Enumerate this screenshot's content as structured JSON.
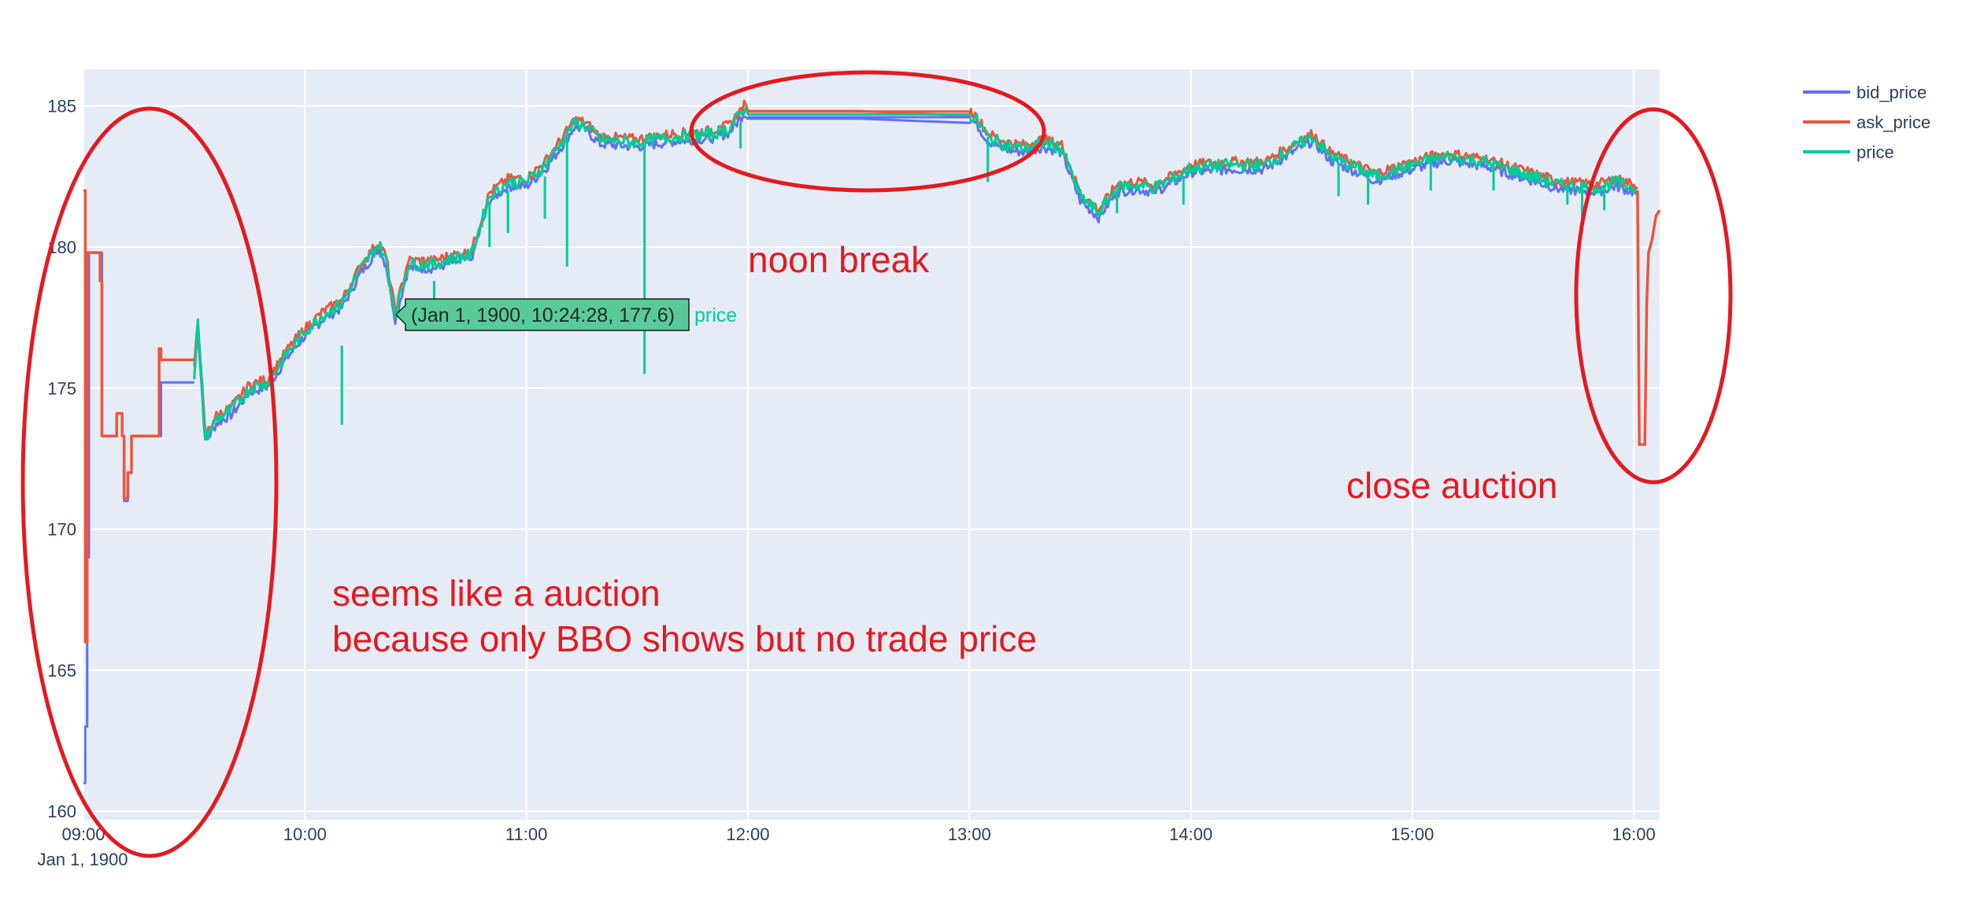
{
  "chart_data": {
    "type": "line",
    "title": "",
    "xlabel": "",
    "ylabel": "",
    "x_axis": {
      "type": "time",
      "range": [
        "09:00",
        "16:07"
      ],
      "ticks": [
        "09:00",
        "10:00",
        "11:00",
        "12:00",
        "13:00",
        "14:00",
        "15:00",
        "16:00"
      ],
      "date_label": "Jan 1, 1900"
    },
    "y_axis": {
      "range": [
        159.7,
        186.3
      ],
      "ticks": [
        160,
        165,
        170,
        175,
        180,
        185
      ]
    },
    "grid": true,
    "plot_bgcolor": "#e5ecf6",
    "legend": {
      "position": "top-right"
    },
    "series": [
      {
        "name": "bid_price",
        "color": "#636efa",
        "points": [
          [
            "09:00",
            161.0
          ],
          [
            "09:00:30",
            163.0
          ],
          [
            "09:01",
            169.0
          ],
          [
            "09:01:30",
            179.8
          ],
          [
            "09:04",
            179.8
          ],
          [
            "09:05",
            173.3
          ],
          [
            "09:08",
            173.3
          ],
          [
            "09:09",
            174.1
          ],
          [
            "09:10",
            174.1
          ],
          [
            "09:10:30",
            173.3
          ],
          [
            "09:11",
            171.0
          ],
          [
            "09:12",
            172.0
          ],
          [
            "09:13",
            173.3
          ],
          [
            "09:20",
            173.3
          ],
          [
            "09:21",
            175.2
          ],
          [
            "09:30",
            175.2
          ]
        ]
      },
      {
        "name": "ask_price",
        "color": "#ef553b",
        "points": [
          [
            "09:00",
            182.0
          ],
          [
            "09:00:30",
            166.0
          ],
          [
            "09:01",
            179.8
          ],
          [
            "09:04",
            179.8
          ],
          [
            "09:04:30",
            178.8
          ],
          [
            "09:05",
            173.3
          ],
          [
            "09:08",
            173.3
          ],
          [
            "09:09",
            174.1
          ],
          [
            "09:10",
            174.1
          ],
          [
            "09:10:30",
            173.3
          ],
          [
            "09:11",
            171.1
          ],
          [
            "09:12",
            172.0
          ],
          [
            "09:13",
            173.3
          ],
          [
            "09:20",
            173.3
          ],
          [
            "09:20:30",
            176.4
          ],
          [
            "09:21",
            176.0
          ],
          [
            "09:30",
            176.0
          ]
        ]
      },
      {
        "name": "price",
        "color": "#00cc96",
        "points": [
          [
            "09:30",
            175.5
          ],
          [
            "09:31",
            177.3
          ],
          [
            "09:33",
            173.2
          ],
          [
            "09:36",
            173.9
          ],
          [
            "09:40",
            174.2
          ],
          [
            "09:45",
            175.0
          ],
          [
            "09:50",
            175.2
          ],
          [
            "09:55",
            176.2
          ],
          [
            "10:00",
            177.0
          ],
          [
            "10:05",
            177.6
          ],
          [
            "10:10",
            178.0
          ],
          [
            "10:15",
            179.2
          ],
          [
            "10:20",
            180.1
          ],
          [
            "10:22",
            179.5
          ],
          [
            "10:24:28",
            177.6
          ],
          [
            "10:28",
            179.4
          ],
          [
            "10:35",
            179.4
          ],
          [
            "10:40",
            179.6
          ],
          [
            "10:45",
            179.7
          ],
          [
            "10:50",
            181.8
          ],
          [
            "10:55",
            182.3
          ],
          [
            "11:00",
            182.3
          ],
          [
            "11:05",
            182.9
          ],
          [
            "11:10",
            183.8
          ],
          [
            "11:13",
            184.4
          ],
          [
            "11:16",
            184.3
          ],
          [
            "11:20",
            183.8
          ],
          [
            "11:30",
            183.7
          ],
          [
            "11:40",
            183.9
          ],
          [
            "11:50",
            184.0
          ],
          [
            "11:55",
            184.2
          ],
          [
            "11:59",
            184.9
          ],
          [
            "12:00",
            184.7
          ],
          [
            "13:00",
            184.7
          ],
          [
            "13:02",
            184.5
          ],
          [
            "13:05",
            183.9
          ],
          [
            "13:10",
            183.6
          ],
          [
            "13:15",
            183.5
          ],
          [
            "13:20",
            183.7
          ],
          [
            "13:25",
            183.5
          ],
          [
            "13:30",
            181.8
          ],
          [
            "13:35",
            181.2
          ],
          [
            "13:40",
            182.1
          ],
          [
            "13:45",
            182.2
          ],
          [
            "13:50",
            182.1
          ],
          [
            "13:55",
            182.4
          ],
          [
            "14:00",
            182.8
          ],
          [
            "14:10",
            182.9
          ],
          [
            "14:20",
            182.9
          ],
          [
            "14:25",
            183.3
          ],
          [
            "14:30",
            183.7
          ],
          [
            "14:33",
            183.9
          ],
          [
            "14:38",
            183.2
          ],
          [
            "14:45",
            182.8
          ],
          [
            "14:50",
            182.5
          ],
          [
            "14:55",
            182.7
          ],
          [
            "15:00",
            182.9
          ],
          [
            "15:05",
            183.1
          ],
          [
            "15:10",
            183.2
          ],
          [
            "15:20",
            183.0
          ],
          [
            "15:30",
            182.6
          ],
          [
            "15:40",
            182.2
          ],
          [
            "15:50",
            182.1
          ],
          [
            "15:55",
            182.3
          ],
          [
            "16:00",
            182.1
          ],
          [
            "16:01",
            182.0
          ]
        ]
      }
    ],
    "hover_label": {
      "text": "(Jan 1, 1900, 10:24:28, 177.6)",
      "series": "price",
      "x": "10:24:28",
      "y": 177.6
    },
    "annotations": [
      {
        "text": "noon break"
      },
      {
        "text": "close auction"
      },
      {
        "text": "seems like a auction"
      },
      {
        "text": "because only BBO shows but no trade price"
      }
    ]
  }
}
